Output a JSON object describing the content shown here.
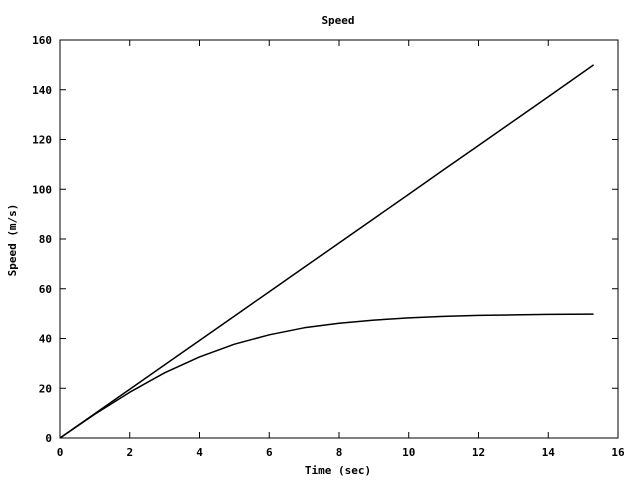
{
  "chart_data": {
    "type": "line",
    "title": "Speed",
    "xlabel": "Time (sec)",
    "ylabel": "Speed (m/s)",
    "xlim": [
      0,
      16
    ],
    "ylim": [
      0,
      160
    ],
    "x_ticks": [
      "0",
      "2",
      "4",
      "6",
      "8",
      "10",
      "12",
      "14",
      "16"
    ],
    "y_ticks": [
      "0",
      "20",
      "40",
      "60",
      "80",
      "100",
      "120",
      "140",
      "160"
    ],
    "grid": false,
    "legend": "none",
    "line_color": "#000000",
    "series": [
      {
        "x": [
          0,
          1,
          2,
          3,
          4,
          5,
          6,
          7,
          8,
          9,
          10,
          11,
          12,
          13,
          14,
          15.3
        ],
        "y": [
          0,
          9.8,
          19.6,
          29.4,
          39.2,
          49.0,
          58.8,
          68.6,
          78.4,
          88.2,
          98.0,
          107.8,
          117.6,
          127.4,
          137.2,
          150.0
        ]
      },
      {
        "x": [
          0,
          1,
          2,
          3,
          4,
          5,
          6,
          7,
          8,
          9,
          10,
          11,
          12,
          13,
          14,
          15.3
        ],
        "y": [
          0,
          9.6,
          18.4,
          26.2,
          32.6,
          37.7,
          41.5,
          44.3,
          46.1,
          47.4,
          48.3,
          48.9,
          49.3,
          49.5,
          49.7,
          49.8
        ]
      }
    ]
  }
}
